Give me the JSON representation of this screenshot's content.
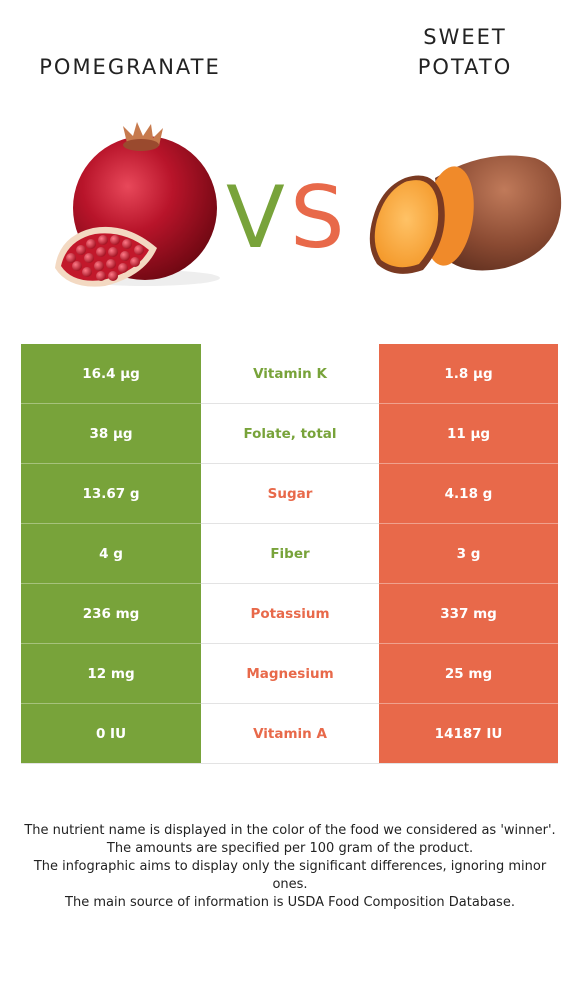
{
  "foods": {
    "left": {
      "name": "POMEGRANATE",
      "color": "#78a33a"
    },
    "right": {
      "name_line1": "SWEET",
      "name_line2": "POTATO",
      "color": "#e8694a"
    }
  },
  "vs": {
    "v": "V",
    "s": "S"
  },
  "rows": [
    {
      "left": "16.4 µg",
      "nutrient": "Vitamin K",
      "right": "1.8 µg",
      "winner": "left"
    },
    {
      "left": "38 µg",
      "nutrient": "Folate, total",
      "right": "11 µg",
      "winner": "left"
    },
    {
      "left": "13.67 g",
      "nutrient": "Sugar",
      "right": "4.18 g",
      "winner": "right"
    },
    {
      "left": "4 g",
      "nutrient": "Fiber",
      "right": "3 g",
      "winner": "left"
    },
    {
      "left": "236 mg",
      "nutrient": "Potassium",
      "right": "337 mg",
      "winner": "right"
    },
    {
      "left": "12 mg",
      "nutrient": "Magnesium",
      "right": "25 mg",
      "winner": "right"
    },
    {
      "left": "0 IU",
      "nutrient": "Vitamin A",
      "right": "14187 IU",
      "winner": "right"
    }
  ],
  "footer": {
    "line1": "The nutrient name is displayed in the color of the food we considered as 'winner'.",
    "line2": "The amounts are specified per 100 gram of the product.",
    "line3": "The infographic aims to display only the significant differences, ignoring minor ones.",
    "line4": "The main source of information is USDA Food Composition Database."
  }
}
